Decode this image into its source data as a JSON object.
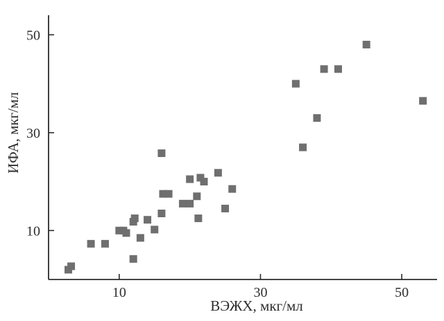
{
  "chart_data": {
    "type": "scatter",
    "xlabel": "ВЭЖХ, мкг/мл",
    "ylabel": "ИФА, мкг/мл",
    "xlim": [
      0,
      55
    ],
    "ylim": [
      0,
      54
    ],
    "x_ticks": [
      10,
      30,
      50
    ],
    "y_ticks": [
      10,
      30,
      50
    ],
    "x_tick_labels": [
      "10",
      "30",
      "50"
    ],
    "y_tick_labels": [
      "10",
      "30",
      "50"
    ],
    "grid": false,
    "point_color": "#6f6f6f",
    "series": [
      {
        "points": [
          [
            2.8,
            2.0
          ],
          [
            3.2,
            2.7
          ],
          [
            6.0,
            7.3
          ],
          [
            8.0,
            7.3
          ],
          [
            10.0,
            10.0
          ],
          [
            10.6,
            10.0
          ],
          [
            11.0,
            9.5
          ],
          [
            12.0,
            11.8
          ],
          [
            12.2,
            12.5
          ],
          [
            12.0,
            4.2
          ],
          [
            13.0,
            8.5
          ],
          [
            14.0,
            12.2
          ],
          [
            15.0,
            10.2
          ],
          [
            16.0,
            13.5
          ],
          [
            16.2,
            17.5
          ],
          [
            17.0,
            17.5
          ],
          [
            16.0,
            25.8
          ],
          [
            19.0,
            15.5
          ],
          [
            20.0,
            15.5
          ],
          [
            20.0,
            20.5
          ],
          [
            21.0,
            17.0
          ],
          [
            21.2,
            12.5
          ],
          [
            21.5,
            20.8
          ],
          [
            22.0,
            20.0
          ],
          [
            24.0,
            21.8
          ],
          [
            25.0,
            14.5
          ],
          [
            26.0,
            18.5
          ],
          [
            35.0,
            40.0
          ],
          [
            36.0,
            27.0
          ],
          [
            38.0,
            33.0
          ],
          [
            39.0,
            43.0
          ],
          [
            41.0,
            43.0
          ],
          [
            45.0,
            48.0
          ],
          [
            53.0,
            36.5
          ]
        ]
      }
    ]
  }
}
